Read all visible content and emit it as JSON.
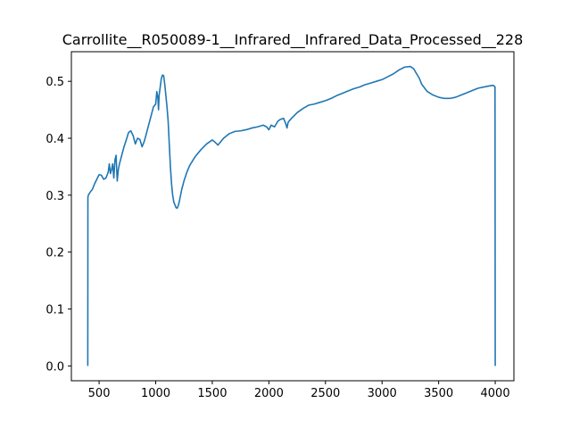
{
  "chart_data": {
    "type": "line",
    "title": "Carrollite__R050089-1__Infrared__Infrared_Data_Processed__228",
    "xlabel": "",
    "ylabel": "",
    "xlim": [
      255,
      4165
    ],
    "ylim": [
      -0.026,
      0.552
    ],
    "x_ticks": [
      500,
      1000,
      1500,
      2000,
      2500,
      3000,
      3500,
      4000
    ],
    "y_ticks": [
      0.0,
      0.1,
      0.2,
      0.3,
      0.4,
      0.5
    ],
    "y_tick_labels": [
      "0.0",
      "0.1",
      "0.2",
      "0.3",
      "0.4",
      "0.5"
    ],
    "grid": false,
    "series": [
      {
        "color": "#1f77b4",
        "x": [
          400,
          401,
          405,
          420,
          440,
          460,
          480,
          500,
          520,
          540,
          560,
          580,
          590,
          600,
          610,
          620,
          630,
          640,
          650,
          660,
          670,
          680,
          700,
          720,
          740,
          760,
          780,
          800,
          820,
          840,
          860,
          880,
          900,
          920,
          940,
          960,
          980,
          1000,
          1010,
          1020,
          1025,
          1030,
          1040,
          1050,
          1060,
          1070,
          1080,
          1090,
          1100,
          1110,
          1120,
          1130,
          1140,
          1150,
          1160,
          1170,
          1180,
          1190,
          1200,
          1210,
          1220,
          1230,
          1250,
          1275,
          1300,
          1350,
          1400,
          1450,
          1500,
          1525,
          1550,
          1600,
          1650,
          1700,
          1750,
          1800,
          1850,
          1900,
          1950,
          1980,
          2000,
          2020,
          2050,
          2080,
          2100,
          2130,
          2150,
          2160,
          2170,
          2200,
          2250,
          2300,
          2350,
          2400,
          2450,
          2500,
          2550,
          2600,
          2650,
          2700,
          2750,
          2800,
          2850,
          2900,
          2950,
          3000,
          3050,
          3100,
          3150,
          3200,
          3250,
          3280,
          3300,
          3330,
          3350,
          3380,
          3400,
          3450,
          3500,
          3550,
          3600,
          3650,
          3700,
          3750,
          3800,
          3850,
          3900,
          3950,
          3980,
          3995,
          3998,
          4000
        ],
        "y": [
          0.0,
          0.296,
          0.3,
          0.305,
          0.31,
          0.32,
          0.328,
          0.336,
          0.335,
          0.328,
          0.33,
          0.34,
          0.355,
          0.338,
          0.345,
          0.355,
          0.33,
          0.362,
          0.37,
          0.325,
          0.345,
          0.355,
          0.37,
          0.385,
          0.397,
          0.41,
          0.413,
          0.405,
          0.39,
          0.4,
          0.398,
          0.385,
          0.395,
          0.41,
          0.425,
          0.44,
          0.455,
          0.46,
          0.482,
          0.47,
          0.45,
          0.475,
          0.49,
          0.505,
          0.511,
          0.51,
          0.495,
          0.475,
          0.455,
          0.43,
          0.39,
          0.35,
          0.32,
          0.3,
          0.288,
          0.283,
          0.278,
          0.277,
          0.282,
          0.29,
          0.3,
          0.31,
          0.325,
          0.34,
          0.352,
          0.368,
          0.38,
          0.39,
          0.397,
          0.393,
          0.388,
          0.4,
          0.408,
          0.412,
          0.413,
          0.415,
          0.418,
          0.42,
          0.423,
          0.42,
          0.415,
          0.423,
          0.42,
          0.43,
          0.433,
          0.435,
          0.425,
          0.418,
          0.428,
          0.435,
          0.445,
          0.452,
          0.458,
          0.46,
          0.463,
          0.466,
          0.47,
          0.475,
          0.479,
          0.483,
          0.487,
          0.49,
          0.494,
          0.497,
          0.5,
          0.503,
          0.508,
          0.513,
          0.52,
          0.525,
          0.526,
          0.522,
          0.515,
          0.505,
          0.495,
          0.487,
          0.482,
          0.476,
          0.472,
          0.47,
          0.47,
          0.472,
          0.476,
          0.48,
          0.484,
          0.488,
          0.49,
          0.492,
          0.493,
          0.491,
          0.49,
          0.0
        ]
      }
    ]
  }
}
